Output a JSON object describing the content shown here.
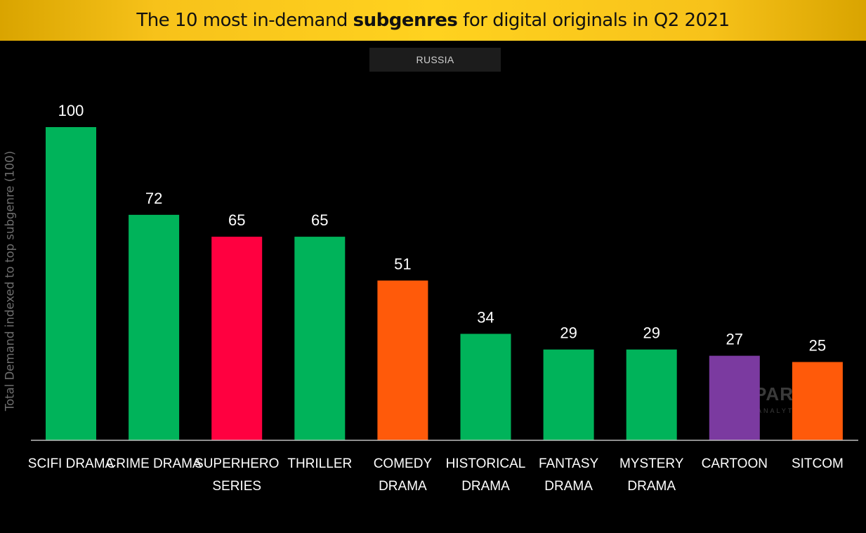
{
  "title": {
    "pre": "The 10 most in-demand ",
    "bold": "subgenres",
    "post": " for digital originals in Q2 2021"
  },
  "region": "RUSSIA",
  "watermark": {
    "brand": "PAROT",
    "sub": "ANALYTICS"
  },
  "colors": {
    "green": "#00b35a",
    "red": "#ff0040",
    "orange": "#ff5a0a",
    "purple": "#7b3aa0",
    "title_bar": "#ffd21f"
  },
  "chart_data": {
    "type": "bar",
    "title": "The 10 most in-demand subgenres for digital originals in Q2 2021",
    "subtitle": "RUSSIA",
    "ylabel": "Total Demand indexed to top subgenre (100)",
    "xlabel": "",
    "ylim": [
      0,
      100
    ],
    "grid": false,
    "categories": [
      [
        "SCIFI DRAMA"
      ],
      [
        "CRIME DRAMA"
      ],
      [
        "SUPERHERO",
        "SERIES"
      ],
      [
        "THRILLER"
      ],
      [
        "COMEDY",
        "DRAMA"
      ],
      [
        "HISTORICAL",
        "DRAMA"
      ],
      [
        "FANTASY",
        "DRAMA"
      ],
      [
        "MYSTERY",
        "DRAMA"
      ],
      [
        "CARTOON"
      ],
      [
        "SITCOM"
      ]
    ],
    "values": [
      100,
      72,
      65,
      65,
      51,
      34,
      29,
      29,
      27,
      25
    ],
    "bar_colors": [
      "#00b35a",
      "#00b35a",
      "#ff0040",
      "#00b35a",
      "#ff5a0a",
      "#00b35a",
      "#00b35a",
      "#00b35a",
      "#7b3aa0",
      "#ff5a0a"
    ]
  }
}
